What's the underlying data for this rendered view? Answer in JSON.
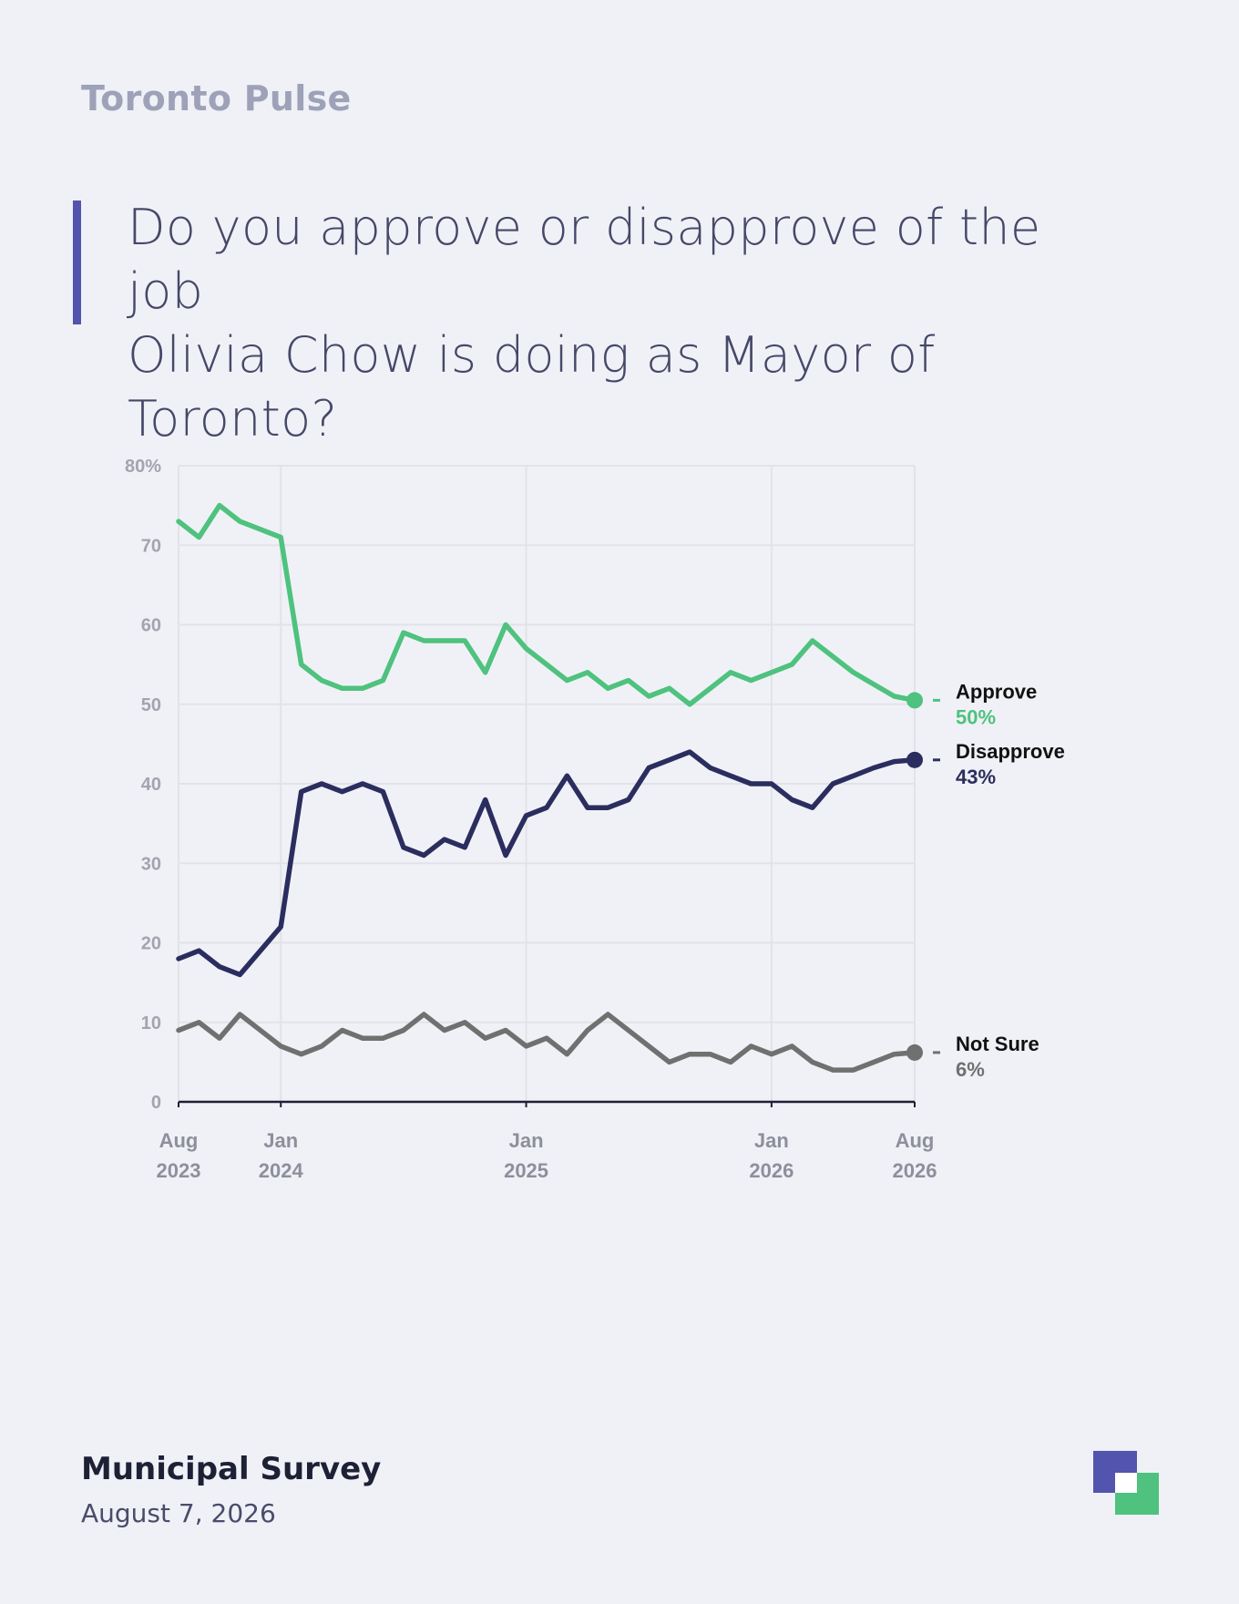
{
  "header": {
    "brand": "Toronto Pulse",
    "question_line1": "Do you approve or disapprove of the job",
    "question_line2": "Olivia Chow is doing as Mayor of Toronto?"
  },
  "footer": {
    "title": "Municipal Survey",
    "date": "August 7, 2026"
  },
  "chart_data": {
    "type": "line",
    "title": "",
    "xlabel": "",
    "ylabel": "",
    "ylim": [
      0,
      80
    ],
    "yticks": [
      {
        "value": 80,
        "label": "80%"
      },
      {
        "value": 70,
        "label": "70"
      },
      {
        "value": 60,
        "label": "60"
      },
      {
        "value": 50,
        "label": "50"
      },
      {
        "value": 40,
        "label": "40"
      },
      {
        "value": 30,
        "label": "30"
      },
      {
        "value": 20,
        "label": "20"
      },
      {
        "value": 10,
        "label": "10"
      },
      {
        "value": 0,
        "label": "0"
      }
    ],
    "xlim": [
      "2023-08",
      "2026-08"
    ],
    "xticks": [
      {
        "date": "2023-08",
        "line1": "Aug",
        "line2": "2023"
      },
      {
        "date": "2024-01",
        "line1": "Jan",
        "line2": "2024"
      },
      {
        "date": "2025-01",
        "line1": "Jan",
        "line2": "2025"
      },
      {
        "date": "2026-01",
        "line1": "Jan",
        "line2": "2026"
      },
      {
        "date": "2026-08",
        "line1": "Aug",
        "line2": "2026"
      }
    ],
    "grid": true,
    "series": [
      {
        "name": "Approve",
        "color": "#4ec27e",
        "end_label": "50%",
        "points": [
          [
            "2023-08",
            73
          ],
          [
            "2023-09",
            71
          ],
          [
            "2023-10",
            75
          ],
          [
            "2023-11",
            73
          ],
          [
            "2023-12",
            72
          ],
          [
            "2024-01",
            71
          ],
          [
            "2024-02",
            55
          ],
          [
            "2024-03",
            53
          ],
          [
            "2024-04",
            52
          ],
          [
            "2024-05",
            52
          ],
          [
            "2024-06",
            53
          ],
          [
            "2024-07",
            59
          ],
          [
            "2024-08",
            58
          ],
          [
            "2024-09",
            58
          ],
          [
            "2024-10",
            58
          ],
          [
            "2024-11",
            54
          ],
          [
            "2024-12",
            60
          ],
          [
            "2025-01",
            57
          ],
          [
            "2025-02",
            55
          ],
          [
            "2025-03",
            53
          ],
          [
            "2025-04",
            54
          ],
          [
            "2025-05",
            52
          ],
          [
            "2025-06",
            53
          ],
          [
            "2025-07",
            51
          ],
          [
            "2025-08",
            52
          ],
          [
            "2025-09",
            50
          ],
          [
            "2025-10",
            52
          ],
          [
            "2025-11",
            54
          ],
          [
            "2025-12",
            53
          ],
          [
            "2026-01",
            54
          ],
          [
            "2026-02",
            55
          ],
          [
            "2026-03",
            58
          ],
          [
            "2026-04",
            56
          ],
          [
            "2026-05",
            54
          ],
          [
            "2026-06",
            52.5
          ],
          [
            "2026-07",
            51
          ],
          [
            "2026-08",
            50.5
          ]
        ]
      },
      {
        "name": "Disapprove",
        "color": "#2b2d5e",
        "end_label": "43%",
        "points": [
          [
            "2023-08",
            18
          ],
          [
            "2023-09",
            19
          ],
          [
            "2023-10",
            17
          ],
          [
            "2023-11",
            16
          ],
          [
            "2023-12",
            19
          ],
          [
            "2024-01",
            22
          ],
          [
            "2024-02",
            39
          ],
          [
            "2024-03",
            40
          ],
          [
            "2024-04",
            39
          ],
          [
            "2024-05",
            40
          ],
          [
            "2024-06",
            39
          ],
          [
            "2024-07",
            32
          ],
          [
            "2024-08",
            31
          ],
          [
            "2024-09",
            33
          ],
          [
            "2024-10",
            32
          ],
          [
            "2024-11",
            38
          ],
          [
            "2024-12",
            31
          ],
          [
            "2025-01",
            36
          ],
          [
            "2025-02",
            37
          ],
          [
            "2025-03",
            41
          ],
          [
            "2025-04",
            37
          ],
          [
            "2025-05",
            37
          ],
          [
            "2025-06",
            38
          ],
          [
            "2025-07",
            42
          ],
          [
            "2025-08",
            43
          ],
          [
            "2025-09",
            44
          ],
          [
            "2025-10",
            42
          ],
          [
            "2025-11",
            41
          ],
          [
            "2025-12",
            40
          ],
          [
            "2026-01",
            40
          ],
          [
            "2026-02",
            38
          ],
          [
            "2026-03",
            37
          ],
          [
            "2026-04",
            40
          ],
          [
            "2026-05",
            41
          ],
          [
            "2026-06",
            42
          ],
          [
            "2026-07",
            42.8
          ],
          [
            "2026-08",
            43
          ]
        ]
      },
      {
        "name": "Not Sure",
        "color": "#707070",
        "end_label": "6%",
        "points": [
          [
            "2023-08",
            9
          ],
          [
            "2023-09",
            10
          ],
          [
            "2023-10",
            8
          ],
          [
            "2023-11",
            11
          ],
          [
            "2023-12",
            9
          ],
          [
            "2024-01",
            7
          ],
          [
            "2024-02",
            6
          ],
          [
            "2024-03",
            7
          ],
          [
            "2024-04",
            9
          ],
          [
            "2024-05",
            8
          ],
          [
            "2024-06",
            8
          ],
          [
            "2024-07",
            9
          ],
          [
            "2024-08",
            11
          ],
          [
            "2024-09",
            9
          ],
          [
            "2024-10",
            10
          ],
          [
            "2024-11",
            8
          ],
          [
            "2024-12",
            9
          ],
          [
            "2025-01",
            7
          ],
          [
            "2025-02",
            8
          ],
          [
            "2025-03",
            6
          ],
          [
            "2025-04",
            9
          ],
          [
            "2025-05",
            11
          ],
          [
            "2025-06",
            9
          ],
          [
            "2025-07",
            7
          ],
          [
            "2025-08",
            5
          ],
          [
            "2025-09",
            6
          ],
          [
            "2025-10",
            6
          ],
          [
            "2025-11",
            5
          ],
          [
            "2025-12",
            7
          ],
          [
            "2026-01",
            6
          ],
          [
            "2026-02",
            7
          ],
          [
            "2026-03",
            5
          ],
          [
            "2026-04",
            4
          ],
          [
            "2026-05",
            4
          ],
          [
            "2026-06",
            5
          ],
          [
            "2026-07",
            6
          ],
          [
            "2026-08",
            6.2
          ]
        ]
      }
    ]
  }
}
